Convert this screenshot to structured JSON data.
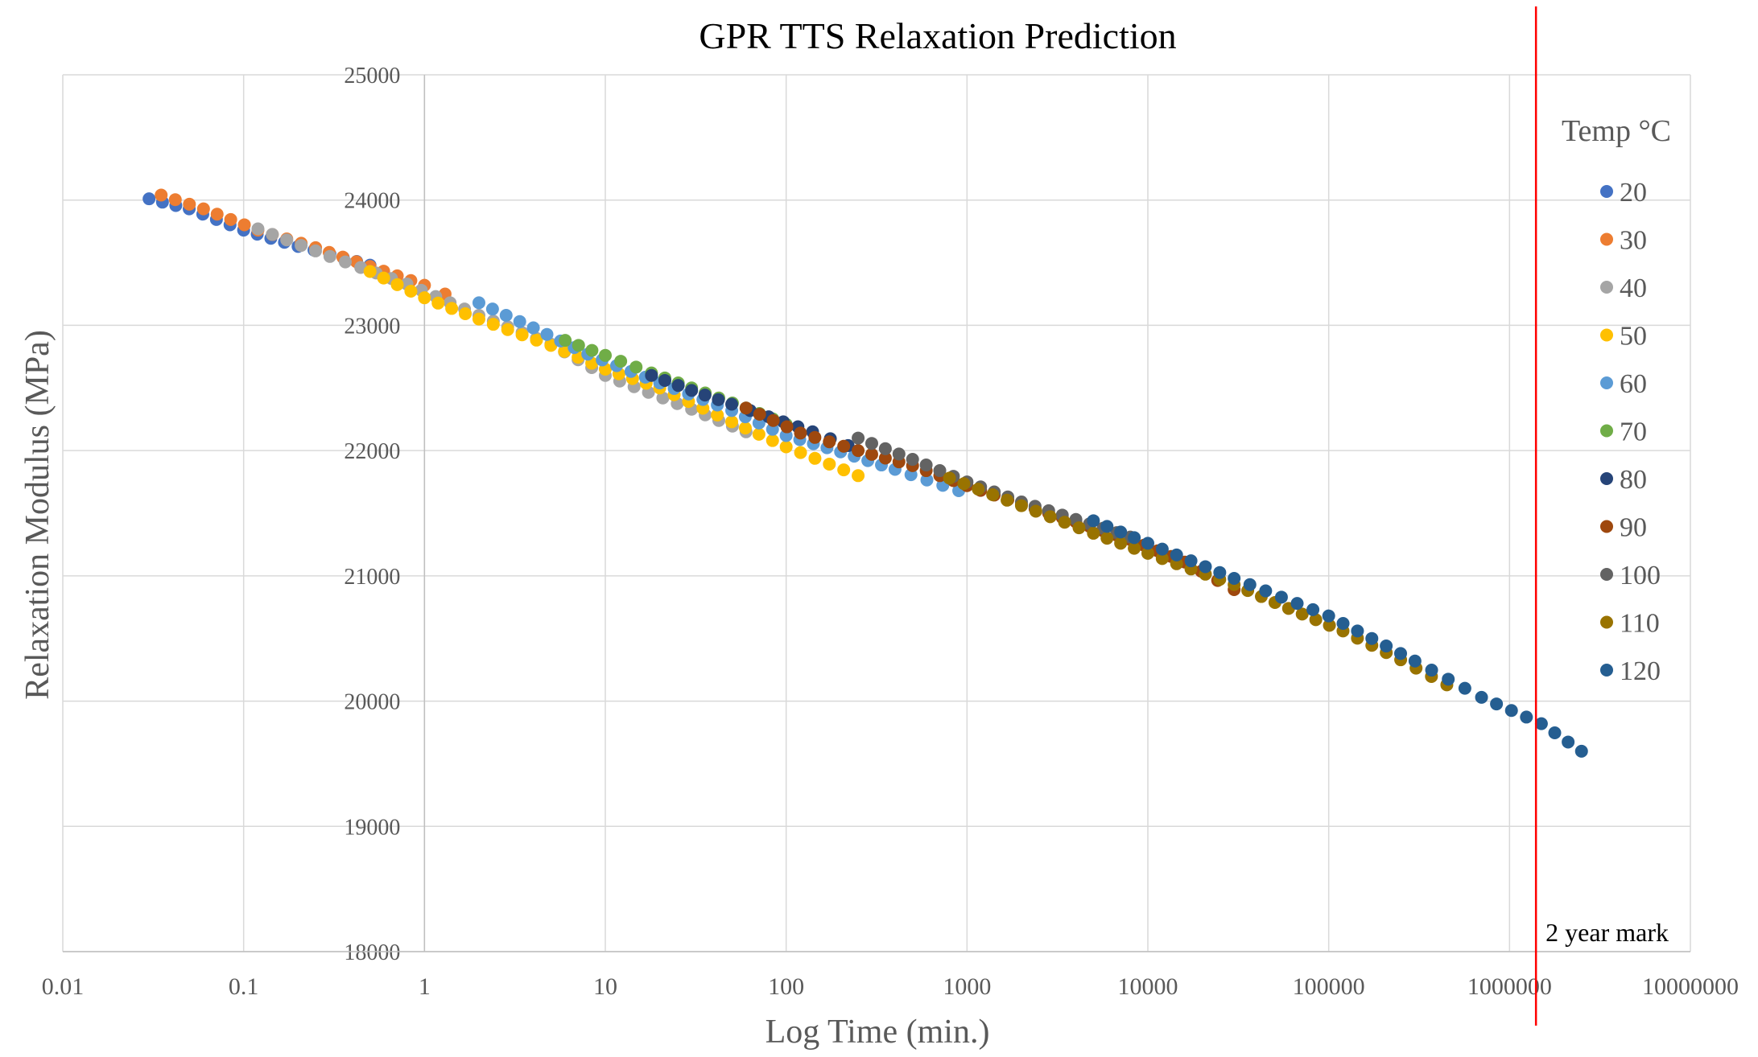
{
  "chart_data": {
    "type": "scatter",
    "title": "GPR TTS Relaxation Prediction",
    "xlabel": "Log Time (min.)",
    "ylabel": "Relaxation Modulus (MPa)",
    "xscale": "log",
    "xlim": [
      0.01,
      10000000
    ],
    "ylim": [
      18000,
      25000
    ],
    "x_ticks": [
      "0.01",
      "0.1",
      "1",
      "10",
      "100",
      "1000",
      "10000",
      "100000",
      "1000000",
      "10000000"
    ],
    "y_ticks": [
      "18000",
      "19000",
      "20000",
      "21000",
      "22000",
      "23000",
      "24000",
      "25000"
    ],
    "grid": true,
    "legend": {
      "title": "Temp °C",
      "position": "right"
    },
    "reference_line": {
      "x": 1400000,
      "label": "2 year mark",
      "color": "#ff0000"
    },
    "series": [
      {
        "name": "20",
        "color": "#4472c4",
        "x": [
          0.03,
          0.05,
          0.1,
          0.2,
          0.3,
          0.5
        ],
        "y": [
          24010,
          23930,
          23760,
          23630,
          23570,
          23480
        ]
      },
      {
        "name": "30",
        "color": "#ed7d31",
        "x": [
          0.035,
          0.06,
          0.12,
          0.25,
          0.5,
          1,
          1.3
        ],
        "y": [
          24040,
          23930,
          23760,
          23620,
          23470,
          23320,
          23250
        ]
      },
      {
        "name": "40",
        "color": "#a5a5a5",
        "x": [
          0.12,
          0.3,
          0.8,
          2,
          5,
          10,
          30,
          60
        ],
        "y": [
          23770,
          23550,
          23330,
          23080,
          22850,
          22600,
          22330,
          22150
        ]
      },
      {
        "name": "50",
        "color": "#ffc000",
        "x": [
          0.5,
          1,
          2,
          5,
          10,
          20,
          50,
          100,
          250
        ],
        "y": [
          23430,
          23220,
          23050,
          22840,
          22650,
          22500,
          22230,
          22030,
          21800
        ]
      },
      {
        "name": "60",
        "color": "#5b9bd5",
        "x": [
          2,
          4,
          8,
          20,
          50,
          100,
          200,
          400,
          900
        ],
        "y": [
          23180,
          22980,
          22770,
          22540,
          22320,
          22120,
          21990,
          21850,
          21680
        ]
      },
      {
        "name": "70",
        "color": "#70ad47",
        "x": [
          6,
          10,
          18,
          30,
          60,
          100
        ],
        "y": [
          22880,
          22760,
          22620,
          22500,
          22340,
          22210
        ]
      },
      {
        "name": "80",
        "color": "#264478",
        "x": [
          18,
          30,
          50,
          80,
          140,
          220
        ],
        "y": [
          22600,
          22480,
          22370,
          22270,
          22150,
          22040
        ]
      },
      {
        "name": "90",
        "color": "#9e480e",
        "x": [
          60,
          120,
          250,
          500,
          1000,
          2000,
          4000,
          8000,
          16000,
          30000
        ],
        "y": [
          22340,
          22140,
          22000,
          21880,
          21720,
          21570,
          21430,
          21290,
          21110,
          20890
        ]
      },
      {
        "name": "100",
        "color": "#636363",
        "x": [
          250,
          500,
          1000,
          2000,
          4000,
          8000
        ],
        "y": [
          22100,
          21930,
          21750,
          21590,
          21450,
          21310
        ]
      },
      {
        "name": "110",
        "color": "#997300",
        "x": [
          800,
          2000,
          5000,
          10000,
          30000,
          60000,
          120000,
          250000,
          450000
        ],
        "y": [
          21780,
          21560,
          21340,
          21180,
          20930,
          20740,
          20560,
          20330,
          20130
        ]
      },
      {
        "name": "120",
        "color": "#255e91",
        "x": [
          5000,
          10000,
          30000,
          100000,
          300000,
          700000,
          1500000,
          2500000
        ],
        "y": [
          21440,
          21260,
          20980,
          20680,
          20320,
          20030,
          19820,
          19600
        ]
      }
    ]
  }
}
